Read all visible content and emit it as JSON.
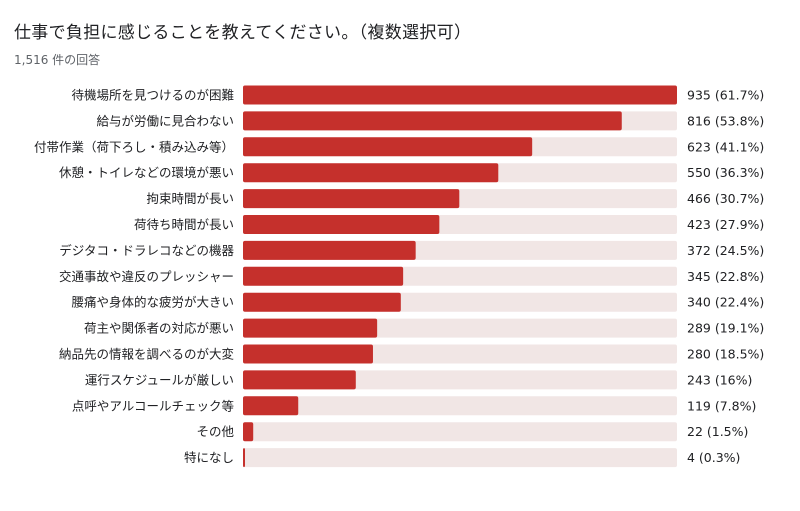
{
  "title": "仕事で負担に感じることを教えてください。（複数選択可）",
  "subtitle": "1,516 件の回答",
  "colors": {
    "bar": "#c5302c",
    "track": "#f1e6e5",
    "text": "#202124",
    "subtext": "#5f6368"
  },
  "chart_data": {
    "type": "bar",
    "orientation": "horizontal",
    "total_responses": 1516,
    "categories": [
      "待機場所を見つけるのが困難",
      "給与が労働に見合わない",
      "付帯作業（荷下ろし・積み込み等）",
      "休憩・トイレなどの環境が悪い",
      "拘束時間が長い",
      "荷待ち時間が長い",
      "デジタコ・ドラレコなどの機器",
      "交通事故や違反のプレッシャー",
      "腰痛や身体的な疲労が大きい",
      "荷主や関係者の対応が悪い",
      "納品先の情報を調べるのが大変",
      "運行スケジュールが厳しい",
      "点呼やアルコールチェック等",
      "その他",
      "特になし"
    ],
    "values": [
      935,
      816,
      623,
      550,
      466,
      423,
      372,
      345,
      340,
      289,
      280,
      243,
      119,
      22,
      4
    ],
    "value_labels": [
      "935 (61.7%)",
      "816 (53.8%)",
      "623 (41.1%)",
      "550 (36.3%)",
      "466 (30.7%)",
      "423 (27.9%)",
      "372 (24.5%)",
      "345 (22.8%)",
      "340 (22.4%)",
      "289 (19.1%)",
      "280 (18.5%)",
      "243 (16%)",
      "119 (7.8%)",
      "22 (1.5%)",
      "4 (0.3%)"
    ],
    "xlim": [
      0,
      935
    ],
    "grid": false,
    "legend": "none"
  }
}
